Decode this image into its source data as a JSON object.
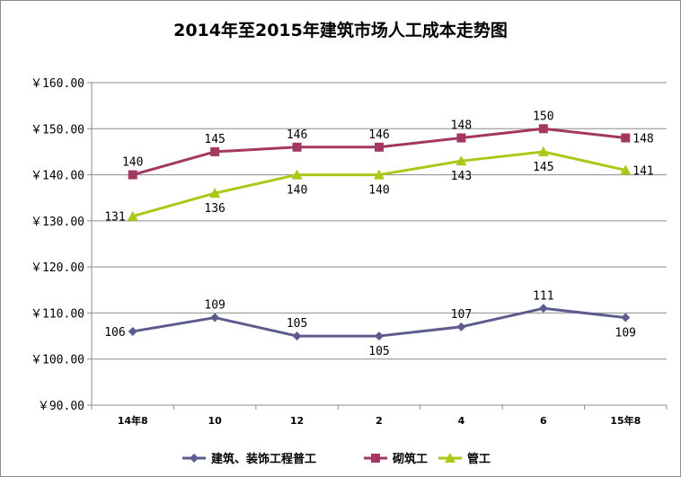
{
  "chart_data": {
    "type": "line",
    "title": "2014年至2015年建筑市场人工成本走势图",
    "xlabel": "",
    "ylabel": "",
    "categories": [
      "14年8",
      "10",
      "12",
      "2",
      "4",
      "6",
      "15年8"
    ],
    "ylim": [
      90,
      160
    ],
    "yticks": [
      90,
      100,
      110,
      120,
      130,
      140,
      150,
      160
    ],
    "ytick_labels": [
      "￥90.00",
      "￥100.00",
      "￥110.00",
      "￥120.00",
      "￥130.00",
      "￥140.00",
      "￥150.00",
      "￥160.00"
    ],
    "grid": true,
    "legend_position": "bottom",
    "series": [
      {
        "name": "建筑、装饰工程普工",
        "values": [
          106,
          109,
          105,
          105,
          107,
          111,
          109
        ],
        "color": "#5b5b8e",
        "marker": "diamond"
      },
      {
        "name": "砌筑工",
        "values": [
          140,
          145,
          146,
          146,
          148,
          150,
          148
        ],
        "color": "#a3375f",
        "marker": "square"
      },
      {
        "name": "管工",
        "values": [
          131,
          136,
          140,
          140,
          143,
          145,
          141
        ],
        "color": "#a9c817",
        "marker": "triangle"
      }
    ]
  }
}
